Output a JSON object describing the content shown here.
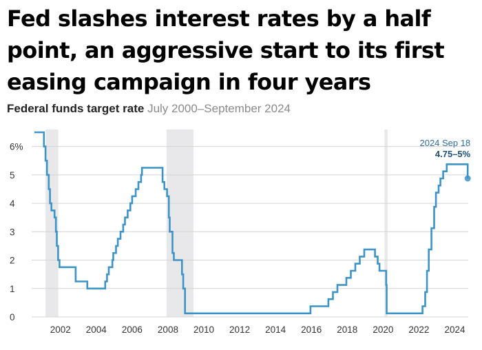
{
  "headline": "Fed slashes interest rates by a half point, an aggressive start to its first easing campaign in four years",
  "colors": {
    "line": "#3c93c6",
    "recession": "#e8e8ea",
    "grid": "#d4d4d4",
    "annotation": "#2e6e9e"
  },
  "chart_data": {
    "type": "line",
    "title": "Federal funds target rate",
    "subtitle": "July 2000–September 2024",
    "xlim": [
      2000.55,
      2024.75
    ],
    "ylim": [
      0,
      6.5
    ],
    "x_ticks": [
      2002,
      2004,
      2006,
      2008,
      2010,
      2012,
      2014,
      2016,
      2018,
      2020,
      2022,
      2024
    ],
    "x_tick_labels": [
      "2002",
      "2004",
      "2006",
      "2008",
      "2010",
      "2012",
      "2014",
      "2016",
      "2018",
      "2020",
      "2022",
      "2024"
    ],
    "y_ticks": [
      0,
      1,
      2,
      3,
      4,
      5,
      6
    ],
    "y_tick_labels": [
      "0",
      "1",
      "2",
      "3",
      "4",
      "5",
      "6%"
    ],
    "grid": true,
    "recessions": [
      [
        2001.17,
        2001.88
      ],
      [
        2007.92,
        2009.42
      ],
      [
        2020.08,
        2020.25
      ]
    ],
    "series": [
      {
        "points": [
          [
            2000.55,
            6.5
          ],
          [
            2001.0,
            6.5
          ],
          [
            2001.08,
            6.0
          ],
          [
            2001.17,
            5.5
          ],
          [
            2001.25,
            5.0
          ],
          [
            2001.35,
            4.5
          ],
          [
            2001.42,
            4.0
          ],
          [
            2001.5,
            3.75
          ],
          [
            2001.67,
            3.5
          ],
          [
            2001.75,
            3.0
          ],
          [
            2001.8,
            2.5
          ],
          [
            2001.87,
            2.0
          ],
          [
            2001.95,
            1.75
          ],
          [
            2002.85,
            1.25
          ],
          [
            2003.5,
            1.0
          ],
          [
            2004.5,
            1.25
          ],
          [
            2004.6,
            1.5
          ],
          [
            2004.7,
            1.75
          ],
          [
            2004.9,
            2.0
          ],
          [
            2004.95,
            2.25
          ],
          [
            2005.1,
            2.5
          ],
          [
            2005.2,
            2.75
          ],
          [
            2005.35,
            3.0
          ],
          [
            2005.5,
            3.25
          ],
          [
            2005.6,
            3.5
          ],
          [
            2005.75,
            3.75
          ],
          [
            2005.9,
            4.0
          ],
          [
            2006.0,
            4.25
          ],
          [
            2006.2,
            4.5
          ],
          [
            2006.35,
            4.75
          ],
          [
            2006.5,
            5.0
          ],
          [
            2006.55,
            5.25
          ],
          [
            2007.7,
            4.75
          ],
          [
            2007.8,
            4.5
          ],
          [
            2007.95,
            4.25
          ],
          [
            2008.05,
            3.5
          ],
          [
            2008.1,
            3.0
          ],
          [
            2008.25,
            2.25
          ],
          [
            2008.33,
            2.0
          ],
          [
            2008.78,
            1.5
          ],
          [
            2008.85,
            1.0
          ],
          [
            2008.95,
            0.125
          ],
          [
            2015.95,
            0.375
          ],
          [
            2016.95,
            0.625
          ],
          [
            2017.2,
            0.875
          ],
          [
            2017.45,
            1.125
          ],
          [
            2017.95,
            1.375
          ],
          [
            2018.2,
            1.625
          ],
          [
            2018.45,
            1.875
          ],
          [
            2018.7,
            2.125
          ],
          [
            2018.95,
            2.375
          ],
          [
            2019.55,
            2.125
          ],
          [
            2019.7,
            1.875
          ],
          [
            2019.8,
            1.625
          ],
          [
            2020.17,
            1.125
          ],
          [
            2020.2,
            0.125
          ],
          [
            2022.2,
            0.375
          ],
          [
            2022.35,
            0.875
          ],
          [
            2022.45,
            1.625
          ],
          [
            2022.55,
            2.375
          ],
          [
            2022.7,
            3.125
          ],
          [
            2022.85,
            3.875
          ],
          [
            2022.95,
            4.375
          ],
          [
            2023.1,
            4.625
          ],
          [
            2023.2,
            4.875
          ],
          [
            2023.35,
            5.125
          ],
          [
            2023.55,
            5.375
          ],
          [
            2024.72,
            4.875
          ],
          [
            2024.72,
            4.875
          ]
        ]
      }
    ],
    "annotation": {
      "x": 2024.72,
      "y": 4.875,
      "date": "2024 Sep 18",
      "value": "4.75–5%"
    }
  }
}
